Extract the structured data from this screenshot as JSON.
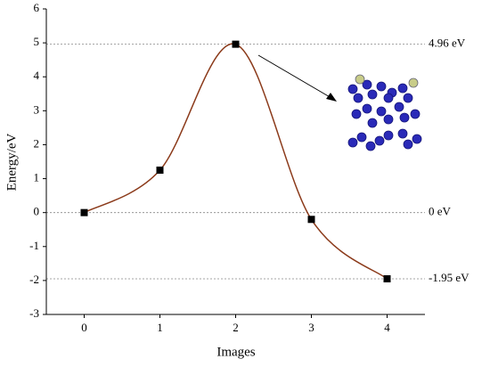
{
  "chart_data": {
    "type": "line",
    "xlabel": "Images",
    "ylabel": "Energy/eV",
    "x": [
      0,
      1,
      2,
      3,
      4
    ],
    "xlim": [
      -0.5,
      4.5
    ],
    "xticks": [
      0,
      1,
      2,
      3,
      4
    ],
    "ylim": [
      -3,
      6
    ],
    "yticks": [
      -3,
      -2,
      -1,
      0,
      1,
      2,
      3,
      4,
      5,
      6
    ],
    "series": [
      {
        "color": "#8b3a1a",
        "marker_color": "#000000",
        "values": [
          0,
          1.25,
          4.96,
          -0.2,
          -1.95
        ]
      }
    ],
    "reference_lines": [
      {
        "value": 4.96,
        "label": "4.96 eV"
      },
      {
        "value": 0,
        "label": "0 eV"
      },
      {
        "value": -1.95,
        "label": "-1.95 eV"
      }
    ],
    "reference_color": "#888888"
  }
}
